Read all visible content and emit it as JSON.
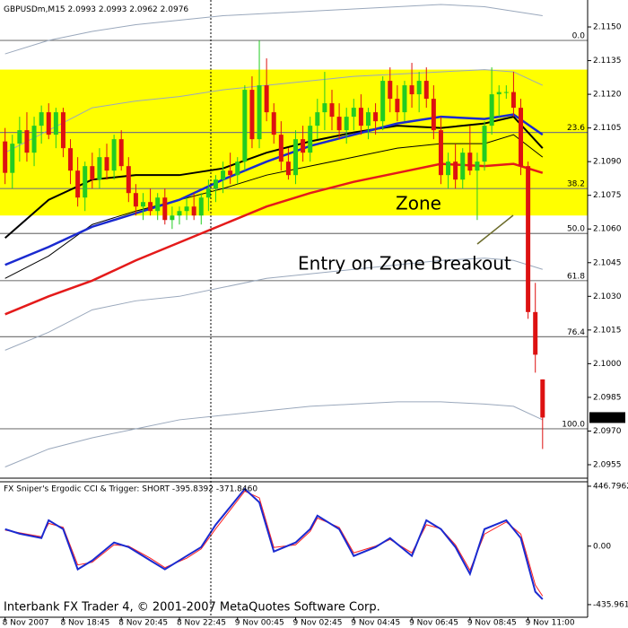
{
  "chart_data": [
    {
      "type": "candlestick",
      "title": "GBPUSDm,M15",
      "open": [
        2.1099,
        2.1085,
        2.1098,
        2.1104,
        2.1094,
        2.1106,
        2.1112,
        2.1102,
        2.1112,
        2.1096,
        2.1086,
        2.1074,
        2.1088,
        2.1082,
        2.1092,
        2.1086,
        2.11,
        2.1088,
        2.1076,
        2.107,
        2.1072,
        2.1068,
        2.1074,
        2.1064,
        2.1066,
        2.1068,
        2.107,
        2.1066,
        2.1074,
        2.1078,
        2.1082,
        2.1086,
        2.1084,
        2.109,
        2.1122,
        2.11,
        2.1124,
        2.1112,
        2.1102,
        2.109,
        2.1084,
        2.11,
        2.1094,
        2.1106,
        2.1112,
        2.1116,
        2.111,
        2.1104,
        2.111,
        2.1114,
        2.1106,
        2.1112,
        2.1108,
        2.1126,
        2.1118,
        2.1112,
        2.1124,
        2.112,
        2.1126,
        2.1118,
        2.1104,
        2.1084,
        2.109,
        2.1082,
        2.1094,
        2.1086,
        2.109,
        2.1106,
        2.112,
        2.1121,
        2.1121,
        2.1114,
        2.1088,
        2.1023,
        2.0993
      ],
      "high": [
        2.1105,
        2.1102,
        2.111,
        2.1112,
        2.111,
        2.1115,
        2.1116,
        2.1114,
        2.1114,
        2.11,
        2.1092,
        2.109,
        2.1094,
        2.1096,
        2.1098,
        2.1102,
        2.1104,
        2.1092,
        2.108,
        2.1076,
        2.1078,
        2.1076,
        2.1078,
        2.107,
        2.107,
        2.1074,
        2.1076,
        2.1076,
        2.1082,
        2.1084,
        2.109,
        2.1094,
        2.1092,
        2.1124,
        2.1128,
        2.1144,
        2.1136,
        2.1116,
        2.1108,
        2.1096,
        2.1104,
        2.1106,
        2.111,
        2.1118,
        2.113,
        2.1122,
        2.1116,
        2.1114,
        2.1118,
        2.112,
        2.1114,
        2.1116,
        2.1128,
        2.1132,
        2.1124,
        2.1126,
        2.1134,
        2.113,
        2.1132,
        2.1124,
        2.111,
        2.1094,
        2.1098,
        2.1096,
        2.1106,
        2.1094,
        2.1108,
        2.1132,
        2.1124,
        2.1124,
        2.113,
        2.1118,
        2.109,
        2.1036,
        2.0993
      ],
      "low": [
        2.108,
        2.1078,
        2.109,
        2.109,
        2.1088,
        2.1098,
        2.11,
        2.1096,
        2.1092,
        2.108,
        2.107,
        2.1068,
        2.1078,
        2.1078,
        2.1082,
        2.1082,
        2.1086,
        2.1072,
        2.1066,
        2.1064,
        2.1066,
        2.1064,
        2.1062,
        2.106,
        2.1062,
        2.1064,
        2.1064,
        2.1062,
        2.1068,
        2.1072,
        2.1076,
        2.108,
        2.108,
        2.1086,
        2.1096,
        2.1096,
        2.1108,
        2.1098,
        2.1086,
        2.1082,
        2.108,
        2.109,
        2.109,
        2.11,
        2.1104,
        2.1104,
        2.11,
        2.1098,
        2.1104,
        2.1102,
        2.11,
        2.1102,
        2.1104,
        2.1112,
        2.1108,
        2.1108,
        2.1114,
        2.1112,
        2.1114,
        2.11,
        2.108,
        2.1078,
        2.1078,
        2.1078,
        2.1084,
        2.1064,
        2.1086,
        2.1102,
        2.111,
        2.1118,
        2.111,
        2.1084,
        2.102,
        2.0996,
        2.0962
      ],
      "close": [
        2.1085,
        2.1098,
        2.1104,
        2.1094,
        2.1106,
        2.1112,
        2.1102,
        2.1112,
        2.1096,
        2.1086,
        2.1074,
        2.1088,
        2.1082,
        2.1092,
        2.1086,
        2.11,
        2.1088,
        2.1076,
        2.107,
        2.1072,
        2.1068,
        2.1074,
        2.1064,
        2.1066,
        2.1068,
        2.107,
        2.1066,
        2.1074,
        2.1078,
        2.1082,
        2.1086,
        2.1084,
        2.109,
        2.1122,
        2.11,
        2.1124,
        2.1112,
        2.1102,
        2.109,
        2.1084,
        2.11,
        2.1094,
        2.1106,
        2.1112,
        2.1116,
        2.111,
        2.1104,
        2.111,
        2.1114,
        2.1106,
        2.1112,
        2.1108,
        2.1126,
        2.1118,
        2.1112,
        2.1124,
        2.112,
        2.1126,
        2.1118,
        2.1104,
        2.1084,
        2.109,
        2.1082,
        2.1094,
        2.1086,
        2.109,
        2.1106,
        2.112,
        2.1121,
        2.1121,
        2.1114,
        2.1088,
        2.1023,
        2.1004,
        2.0976
      ],
      "up_color": "#22cc22",
      "down_color": "#dd1111",
      "xlim": [
        -0.7,
        80.2
      ],
      "ylim": [
        2.0949,
        2.1162
      ],
      "yticks": [
        {
          "value": 2.115,
          "label": "2.1150"
        },
        2.1135,
        {
          "value": 2.112,
          "label": "2.1120"
        },
        2.1105,
        {
          "value": 2.109,
          "label": "2.1090"
        },
        2.1075,
        {
          "value": 2.106,
          "label": "2.1060"
        },
        2.1045,
        {
          "value": 2.103,
          "label": "2.1030"
        },
        2.1015,
        {
          "value": 2.1,
          "label": "2.1000"
        },
        2.0985,
        {
          "value": 2.097,
          "label": "2.0970"
        },
        2.0955
      ],
      "line_x": [
        0,
        6,
        12,
        18,
        24,
        30,
        36,
        42,
        48,
        54,
        60,
        66,
        70,
        74
      ],
      "lines": [
        {
          "color": "#9aa8bc",
          "width": 1,
          "values": [
            2.1138,
            2.1144,
            2.1148,
            2.1151,
            2.1153,
            2.1155,
            2.1156,
            2.1157,
            2.1158,
            2.1159,
            2.116,
            2.1159,
            2.1157,
            2.1155
          ]
        },
        {
          "color": "#9aa8bc",
          "width": 1,
          "values": [
            2.1094,
            2.1104,
            2.1114,
            2.1117,
            2.1119,
            2.1122,
            2.1124,
            2.1126,
            2.1128,
            2.1129,
            2.113,
            2.1131,
            2.113,
            2.1124
          ]
        },
        {
          "color": "#9aa8bc",
          "width": 1,
          "values": [
            2.1006,
            2.1014,
            2.1024,
            2.1028,
            2.103,
            2.1034,
            2.1038,
            2.104,
            2.1042,
            2.1044,
            2.1046,
            2.1047,
            2.1046,
            2.1042
          ]
        },
        {
          "color": "#9aa8bc",
          "width": 1,
          "values": [
            2.0954,
            2.0962,
            2.0967,
            2.0971,
            2.0975,
            2.0977,
            2.0979,
            2.0981,
            2.0982,
            2.0983,
            2.0983,
            2.0982,
            2.0981,
            2.0975
          ]
        },
        {
          "color": "#000000",
          "width": 1,
          "values": [
            2.1038,
            2.1048,
            2.1062,
            2.1068,
            2.1073,
            2.1078,
            2.1084,
            2.1088,
            2.1092,
            2.1096,
            2.1098,
            2.1098,
            2.1102,
            2.1092
          ]
        },
        {
          "color": "#e41a1a",
          "width": 2.5,
          "values": [
            2.1022,
            2.103,
            2.1037,
            2.1046,
            2.1054,
            2.1062,
            2.107,
            2.1076,
            2.1081,
            2.1085,
            2.1089,
            2.1088,
            2.1089,
            2.1085
          ]
        },
        {
          "color": "#000000",
          "width": 2,
          "values": [
            2.1056,
            2.1073,
            2.1082,
            2.1084,
            2.1084,
            2.1087,
            2.1094,
            2.1099,
            2.1103,
            2.1106,
            2.1105,
            2.1107,
            2.111,
            2.1096
          ]
        },
        {
          "color": "#1a2ad0",
          "width": 2.5,
          "values": [
            2.1044,
            2.1052,
            2.1061,
            2.1067,
            2.1073,
            2.1082,
            2.109,
            2.1097,
            2.1102,
            2.1107,
            2.111,
            2.1109,
            2.1111,
            2.1102
          ]
        }
      ],
      "zone": [
        2.1131,
        2.1066
      ],
      "zone_color": "#ffff00",
      "fib_levels": [
        {
          "value": 2.1144,
          "label": "0.0"
        },
        {
          "value": 2.1103,
          "label": "23.6"
        },
        {
          "value": 2.1078,
          "label": "38.2"
        },
        {
          "value": 2.1058,
          "label": "50.0"
        },
        {
          "value": 2.1037,
          "label": "61.8"
        },
        {
          "value": 2.1012,
          "label": "76.4"
        },
        {
          "value": 2.0971,
          "label": "100.0"
        }
      ],
      "annotations": [
        "Zone",
        "Entry on Zone Breakout"
      ]
    },
    {
      "type": "line",
      "title": "FX Sniper's Ergodic CCI & Trigger: SHORT -395.8392 -371.8460",
      "x": [
        0,
        2,
        5,
        6,
        8,
        10,
        12,
        15,
        17,
        20,
        22,
        25,
        27,
        29,
        31,
        33,
        35,
        37,
        40,
        42,
        43,
        46,
        48,
        51,
        53,
        56,
        58,
        60,
        62,
        64,
        66,
        69,
        71,
        73,
        74
      ],
      "series": [
        {
          "color": "#ff2020",
          "values": [
            120,
            100,
            70,
            170,
            140,
            -140,
            -120,
            10,
            0,
            -90,
            -160,
            -90,
            -20,
            130,
            270,
            410,
            360,
            -10,
            10,
            110,
            210,
            140,
            -50,
            0,
            50,
            -50,
            160,
            130,
            10,
            -180,
            90,
            180,
            90,
            -290,
            -371.846
          ]
        },
        {
          "color": "#1a2ad0",
          "values": [
            127,
            93,
            60,
            193,
            127,
            -173,
            -107,
            27,
            -7,
            -107,
            -173,
            -73,
            -7,
            160,
            293,
            427,
            327,
            -40,
            27,
            127,
            227,
            127,
            -73,
            -7,
            60,
            -73,
            193,
            127,
            -7,
            -207,
            127,
            193,
            60,
            -340,
            -395.8392
          ]
        }
      ],
      "xlim": [
        -0.7,
        80.2
      ],
      "ylim": [
        -530,
        480
      ],
      "yticks": [
        446.7962,
        {
          "value": 0,
          "label": "0.00"
        },
        -435.9616
      ],
      "xticks": [
        {
          "value": 0,
          "label": "8 Nov 2007"
        },
        {
          "value": 8,
          "label": "8 Nov 18:45"
        },
        {
          "value": 16,
          "label": "8 Nov 20:45"
        },
        {
          "value": 24,
          "label": "8 Nov 22:45"
        },
        {
          "value": 32,
          "label": "9 Nov 00:45"
        },
        {
          "value": 40,
          "label": "9 Nov 02:45"
        },
        {
          "value": 48,
          "label": "9 Nov 04:45"
        },
        {
          "value": 56,
          "label": "9 Nov 06:45"
        },
        {
          "value": 64,
          "label": "9 Nov 08:45"
        },
        {
          "value": 72,
          "label": "9 Nov 11:00"
        }
      ]
    }
  ],
  "footer": "Interbank FX Trader 4, © 2001-2007 MetaQuotes Software Corp."
}
